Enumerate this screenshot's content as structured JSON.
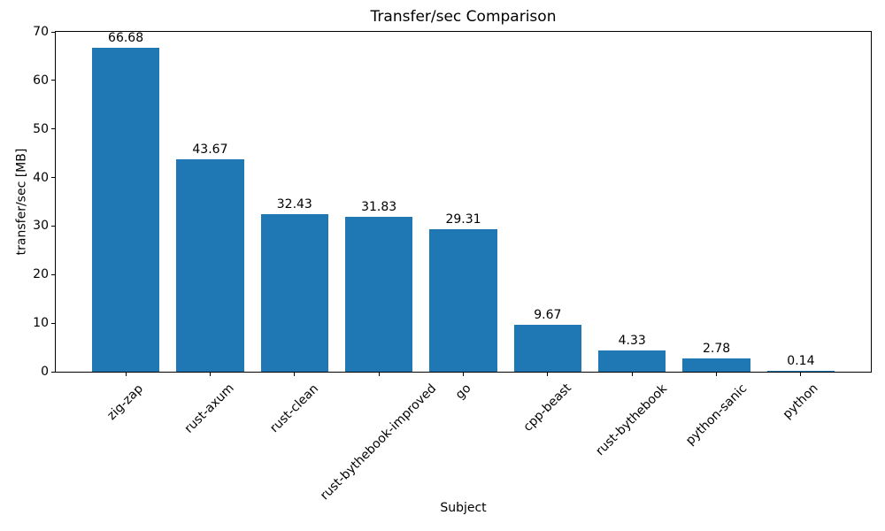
{
  "chart_data": {
    "type": "bar",
    "title": "Transfer/sec Comparison",
    "xlabel": "Subject",
    "ylabel": "transfer/sec [MB]",
    "categories": [
      "zig-zap",
      "rust-axum",
      "rust-clean",
      "rust-bythebook-improved",
      "go",
      "cpp-beast",
      "rust-bythebook",
      "python-sanic",
      "python"
    ],
    "values": [
      66.68,
      43.67,
      32.43,
      31.83,
      29.31,
      9.67,
      4.33,
      2.78,
      0.14
    ],
    "value_labels": [
      "66.68",
      "43.67",
      "32.43",
      "31.83",
      "29.31",
      "9.67",
      "4.33",
      "2.78",
      "0.14"
    ],
    "bar_color": "#1f77b4",
    "ylim": [
      0,
      70
    ],
    "yticks": [
      0,
      10,
      20,
      30,
      40,
      50,
      60,
      70
    ],
    "x_tick_rotation_deg": 45,
    "grid": false,
    "legend": null
  }
}
